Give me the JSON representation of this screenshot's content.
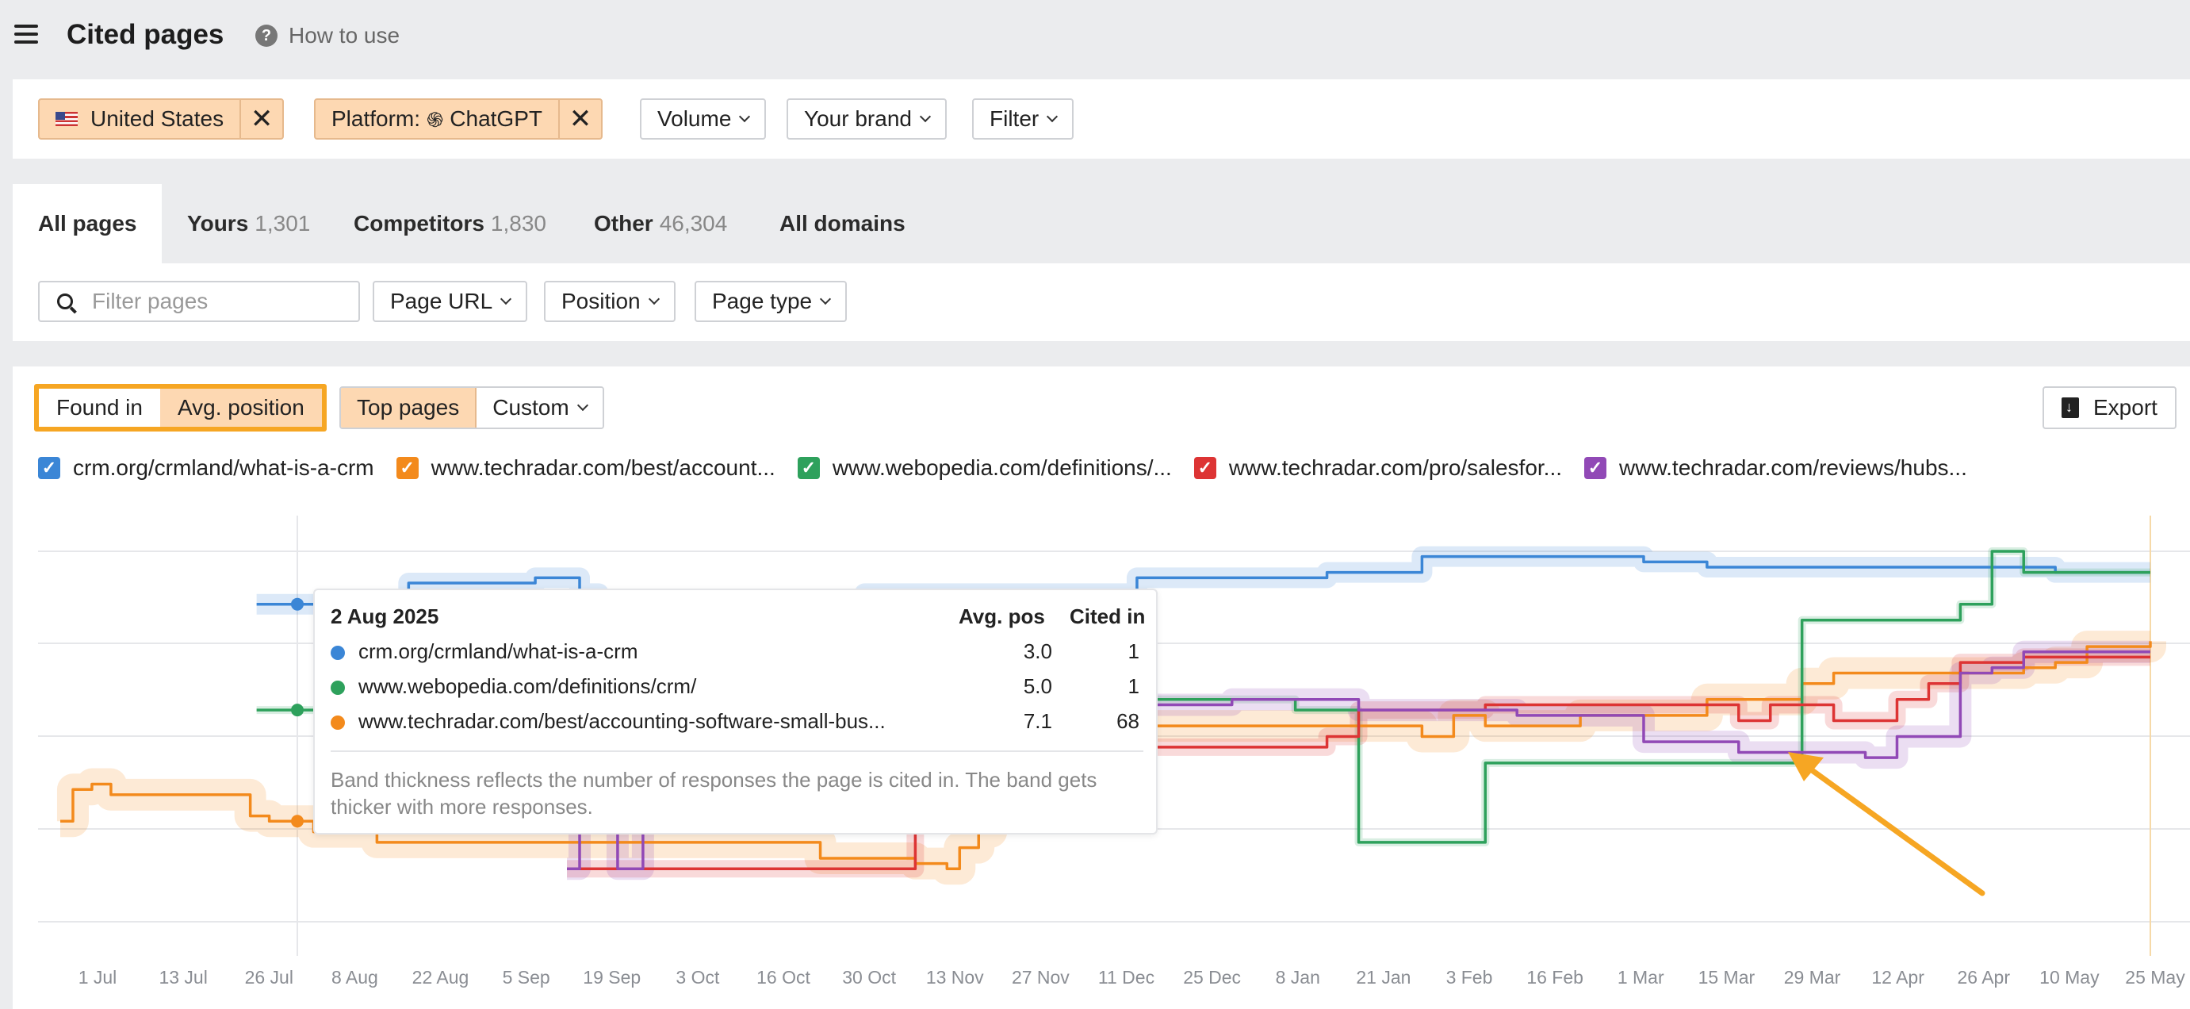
{
  "header": {
    "title": "Cited pages",
    "help_label": "How to use"
  },
  "filters": {
    "country_chip": "United States",
    "platform_chip_prefix": "Platform:",
    "platform_chip_value": "ChatGPT",
    "volume_label": "Volume",
    "brand_label": "Your brand",
    "filter_label": "Filter"
  },
  "tabs": [
    {
      "label": "All pages",
      "count": ""
    },
    {
      "label": "Yours",
      "count": "1,301"
    },
    {
      "label": "Competitors",
      "count": "1,830"
    },
    {
      "label": "Other",
      "count": "46,304"
    },
    {
      "label": "All domains",
      "count": ""
    }
  ],
  "subfilters": {
    "search_placeholder": "Filter pages",
    "page_url_label": "Page URL",
    "position_label": "Position",
    "page_type_label": "Page type"
  },
  "chart_controls": {
    "found_in_label": "Found in",
    "avg_position_label": "Avg. position",
    "top_pages_label": "Top pages",
    "custom_label": "Custom",
    "export_label": "Export"
  },
  "colors": {
    "blue": "#3b86d6",
    "orange": "#f38a1c",
    "green": "#2ea15c",
    "red": "#dd3434",
    "purple": "#9149b6",
    "accent": "#f6a623",
    "chip_bg": "#fdd8b2"
  },
  "chart_data": {
    "type": "line",
    "y_inverted": true,
    "y_meaning": "Avg. position",
    "grid": true,
    "x_tick_labels": [
      "1 Jul",
      "13 Jul",
      "26 Jul",
      "8 Aug",
      "22 Aug",
      "5 Sep",
      "19 Sep",
      "3 Oct",
      "16 Oct",
      "30 Oct",
      "13 Nov",
      "27 Nov",
      "11 Dec",
      "25 Dec",
      "8 Jan",
      "21 Jan",
      "3 Feb",
      "16 Feb",
      "1 Mar",
      "15 Mar",
      "29 Mar",
      "12 Apr",
      "26 Apr",
      "10 May",
      "25 May"
    ],
    "series": [
      {
        "name": "crm.org/crmland/what-is-a-crm",
        "color": "#3b86d6",
        "x": [
          31,
          33,
          43,
          45,
          55,
          62,
          68,
          75,
          80,
          82,
          85,
          110,
          125,
          127,
          135,
          145,
          160,
          170,
          185,
          200,
          215,
          225,
          230,
          250,
          260,
          290,
          300,
          305,
          315,
          320,
          330
        ],
        "y": [
          3.0,
          3.0,
          3.0,
          3.0,
          2.6,
          2.6,
          2.6,
          2.5,
          2.5,
          2.8,
          3.0,
          3.0,
          3.0,
          2.8,
          2.8,
          2.8,
          2.8,
          2.5,
          2.5,
          2.4,
          2.1,
          2.1,
          2.1,
          2.2,
          2.3,
          2.3,
          2.3,
          2.3,
          2.4,
          2.4,
          2.4
        ]
      },
      {
        "name": "www.techradar.com/best/accounting-software-small-business",
        "color": "#f38a1c",
        "x": [
          0,
          2,
          5,
          8,
          12,
          20,
          28,
          30,
          33,
          40,
          50,
          60,
          65,
          75,
          90,
          105,
          120,
          130,
          135,
          140,
          142,
          145,
          147,
          150,
          175,
          200,
          215,
          220,
          225,
          230,
          240,
          260,
          275,
          280,
          290,
          300,
          305,
          310,
          315,
          320,
          330
        ],
        "y": [
          7.1,
          6.5,
          6.4,
          6.6,
          6.6,
          6.6,
          6.6,
          7.0,
          7.1,
          7.3,
          7.5,
          7.5,
          7.5,
          7.5,
          7.5,
          7.5,
          7.8,
          7.8,
          7.9,
          8.0,
          7.6,
          7.3,
          7.0,
          5.3,
          5.3,
          5.3,
          5.5,
          5.1,
          5.3,
          5.3,
          5.1,
          4.8,
          4.5,
          4.3,
          4.3,
          4.3,
          4.3,
          4.2,
          4.1,
          3.8,
          3.7
        ]
      },
      {
        "name": "www.webopedia.com/definitions/crm/",
        "color": "#2ea15c",
        "x": [
          31,
          33,
          125,
          140,
          145,
          155,
          180,
          185,
          195,
          205,
          220,
          225,
          230,
          240,
          265,
          275,
          290,
          300,
          305,
          310,
          330
        ],
        "y": [
          5.0,
          5.0,
          5.0,
          4.8,
          4.8,
          4.8,
          4.8,
          4.8,
          5.0,
          7.5,
          7.5,
          6.0,
          6.0,
          6.0,
          6.0,
          3.3,
          3.3,
          3.0,
          2.0,
          2.4,
          2.4
        ]
      },
      {
        "name": "www.techradar.com/pro/salesforce-crm-review",
        "color": "#dd3434",
        "x": [
          80,
          125,
          130,
          135,
          140,
          145,
          160,
          190,
          200,
          205,
          215,
          220,
          225,
          240,
          265,
          270,
          280,
          290,
          295,
          300,
          310,
          330
        ],
        "y": [
          8.0,
          8.0,
          8.0,
          5.4,
          5.4,
          5.6,
          5.7,
          5.7,
          5.5,
          5.0,
          5.0,
          5.0,
          4.9,
          4.9,
          5.2,
          4.9,
          5.2,
          4.8,
          4.5,
          4.1,
          4.0,
          4.0
        ]
      },
      {
        "name": "www.techradar.com/reviews/hubspot-crm",
        "color": "#9149b6",
        "x": [
          80,
          82,
          85,
          88,
          90,
          92,
          125,
          145,
          160,
          170,
          185,
          205,
          230,
          250,
          260,
          265,
          275,
          285,
          290,
          300,
          305,
          310,
          330
        ],
        "y": [
          8.0,
          6.0,
          5.7,
          8.0,
          8.0,
          5.7,
          5.7,
          5.4,
          4.9,
          4.9,
          4.8,
          5.0,
          5.1,
          5.6,
          5.6,
          5.8,
          5.8,
          5.9,
          5.5,
          4.3,
          4.2,
          3.9,
          3.9
        ]
      }
    ],
    "tooltip": {
      "date": "2 Aug 2025",
      "col_avg_pos": "Avg. pos",
      "col_cited_in": "Cited in",
      "rows": [
        {
          "url": "crm.org/crmland/what-is-a-crm",
          "avg_pos": "3.0",
          "cited_in": "1",
          "color": "#3b86d6"
        },
        {
          "url": "www.webopedia.com/definitions/crm/",
          "avg_pos": "5.0",
          "cited_in": "1",
          "color": "#2ea15c"
        },
        {
          "url": "www.techradar.com/best/accounting-software-small-bus...",
          "avg_pos": "7.1",
          "cited_in": "68",
          "color": "#f38a1c"
        }
      ],
      "note": "Band thickness reflects the number of responses the page is cited in. The band gets thicker with more responses."
    }
  },
  "legend": [
    {
      "label": "crm.org/crmland/what-is-a-crm",
      "color": "#3b86d6"
    },
    {
      "label": "www.techradar.com/best/account...",
      "color": "#f38a1c"
    },
    {
      "label": "www.webopedia.com/definitions/...",
      "color": "#2ea15c"
    },
    {
      "label": "www.techradar.com/pro/salesfor...",
      "color": "#dd3434"
    },
    {
      "label": "www.techradar.com/reviews/hubs...",
      "color": "#9149b6"
    }
  ]
}
